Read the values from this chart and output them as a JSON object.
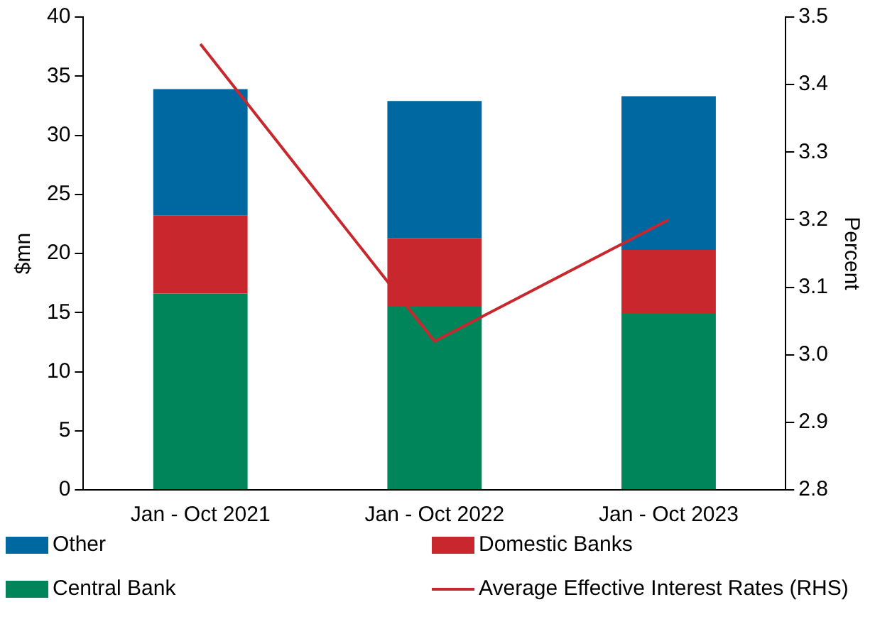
{
  "chart_data": {
    "type": "bar",
    "stacked": true,
    "categories": [
      "Jan - Oct 2021",
      "Jan - Oct 2022",
      "Jan - Oct 2023"
    ],
    "ylabel": "$mn",
    "y2label": "Percent",
    "ylim": [
      0,
      40
    ],
    "yticks": [
      0,
      5,
      10,
      15,
      20,
      25,
      30,
      35,
      40
    ],
    "y2lim": [
      2.8,
      3.5
    ],
    "y2ticks": [
      2.8,
      2.9,
      {
        "value": 3,
        "label": "3.0"
      },
      3.1,
      3.2,
      3.3,
      3.4,
      3.5
    ],
    "grid": false,
    "legend": "bottom",
    "series": [
      {
        "name": "Central Bank",
        "color": "#00845a",
        "values": [
          16.6,
          15.5,
          14.9
        ]
      },
      {
        "name": "Domestic Banks",
        "color": "#c8282d",
        "values": [
          6.6,
          5.8,
          5.4
        ]
      },
      {
        "name": "Other",
        "color": "#0068a0",
        "values": [
          10.7,
          11.6,
          13.0
        ]
      },
      {
        "name": "Average Effective Interest Rates (RHS)",
        "type": "line",
        "axis": "y2",
        "color": "#c8282d",
        "marker": "none",
        "values": [
          3.46,
          3.02,
          3.2
        ]
      }
    ]
  }
}
